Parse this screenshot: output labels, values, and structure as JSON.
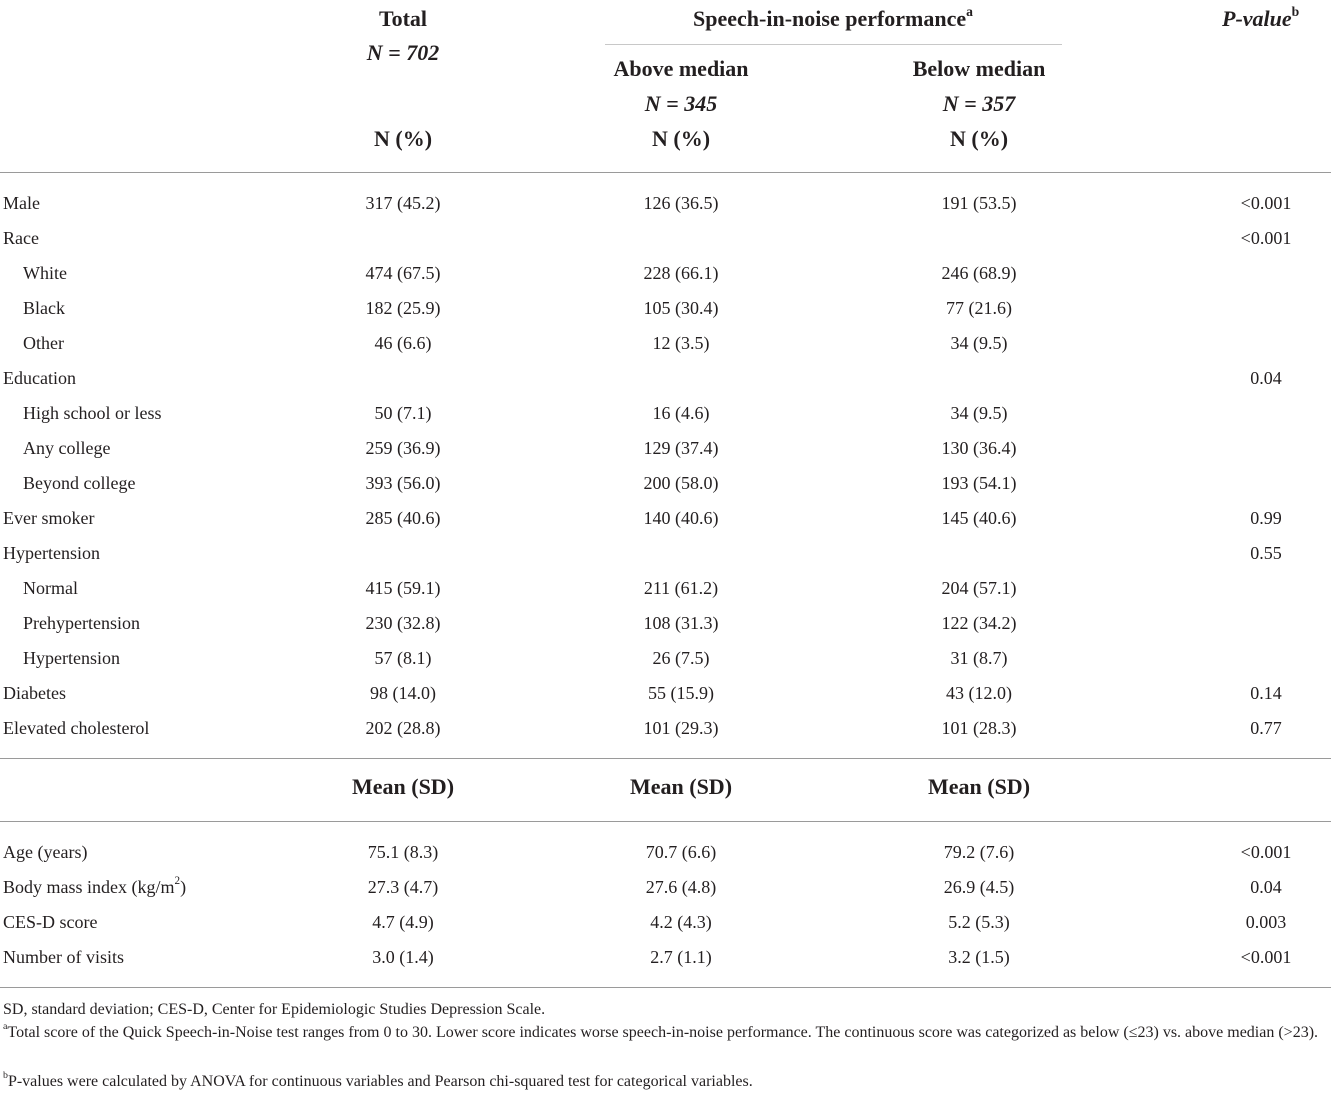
{
  "header": {
    "total_title": "Total",
    "total_n": "N = 702",
    "total_unit": "N (%)",
    "group_title": "Speech-in-noise performance",
    "group_title_sup": "a",
    "above_title": "Above median",
    "above_n": "N = 345",
    "above_unit": "N (%)",
    "below_title": "Below median",
    "below_n": "N = 357",
    "below_unit": "N (%)",
    "pvalue_title": "P-value",
    "pvalue_sup": "b"
  },
  "categorical_rows": [
    {
      "label": "Male",
      "indent": false,
      "total": "317 (45.2)",
      "above": "126 (36.5)",
      "below": "191 (53.5)",
      "p": "<0.001"
    },
    {
      "label": "Race",
      "indent": false,
      "total": "",
      "above": "",
      "below": "",
      "p": "<0.001"
    },
    {
      "label": "White",
      "indent": true,
      "total": "474 (67.5)",
      "above": "228 (66.1)",
      "below": "246 (68.9)",
      "p": ""
    },
    {
      "label": "Black",
      "indent": true,
      "total": "182 (25.9)",
      "above": "105 (30.4)",
      "below": "77 (21.6)",
      "p": ""
    },
    {
      "label": "Other",
      "indent": true,
      "total": "46 (6.6)",
      "above": "12 (3.5)",
      "below": "34 (9.5)",
      "p": ""
    },
    {
      "label": "Education",
      "indent": false,
      "total": "",
      "above": "",
      "below": "",
      "p": "0.04"
    },
    {
      "label": "High school or less",
      "indent": true,
      "total": "50 (7.1)",
      "above": "16 (4.6)",
      "below": "34 (9.5)",
      "p": ""
    },
    {
      "label": "Any college",
      "indent": true,
      "total": "259 (36.9)",
      "above": "129 (37.4)",
      "below": "130 (36.4)",
      "p": ""
    },
    {
      "label": "Beyond college",
      "indent": true,
      "total": "393 (56.0)",
      "above": "200 (58.0)",
      "below": "193 (54.1)",
      "p": ""
    },
    {
      "label": "Ever smoker",
      "indent": false,
      "total": "285 (40.6)",
      "above": "140 (40.6)",
      "below": "145 (40.6)",
      "p": "0.99"
    },
    {
      "label": "Hypertension",
      "indent": false,
      "total": "",
      "above": "",
      "below": "",
      "p": "0.55"
    },
    {
      "label": "Normal",
      "indent": true,
      "total": "415 (59.1)",
      "above": "211 (61.2)",
      "below": "204 (57.1)",
      "p": ""
    },
    {
      "label": "Prehypertension",
      "indent": true,
      "total": "230 (32.8)",
      "above": "108 (31.3)",
      "below": "122 (34.2)",
      "p": ""
    },
    {
      "label": "Hypertension",
      "indent": true,
      "total": "57 (8.1)",
      "above": "26 (7.5)",
      "below": "31 (8.7)",
      "p": ""
    },
    {
      "label": "Diabetes",
      "indent": false,
      "total": "98 (14.0)",
      "above": "55 (15.9)",
      "below": "43 (12.0)",
      "p": "0.14"
    },
    {
      "label": "Elevated cholesterol",
      "indent": false,
      "total": "202 (28.8)",
      "above": "101 (29.3)",
      "below": "101 (28.3)",
      "p": "0.77"
    }
  ],
  "mean_header": {
    "total": "Mean (SD)",
    "above": "Mean (SD)",
    "below": "Mean (SD)"
  },
  "continuous_rows": [
    {
      "label": "Age (years)",
      "label_sup": "",
      "label_tail": "",
      "total": "75.1 (8.3)",
      "above": "70.7 (6.6)",
      "below": "79.2 (7.6)",
      "p": "<0.001"
    },
    {
      "label": "Body mass index (kg/m",
      "label_sup": "2",
      "label_tail": ")",
      "total": "27.3 (4.7)",
      "above": "27.6 (4.8)",
      "below": "26.9 (4.5)",
      "p": "0.04"
    },
    {
      "label": "CES-D score",
      "label_sup": "",
      "label_tail": "",
      "total": "4.7 (4.9)",
      "above": "4.2 (4.3)",
      "below": "5.2 (5.3)",
      "p": "0.003"
    },
    {
      "label": "Number of visits",
      "label_sup": "",
      "label_tail": "",
      "total": "3.0 (1.4)",
      "above": "2.7 (1.1)",
      "below": "3.2 (1.5)",
      "p": "<0.001"
    }
  ],
  "footnotes": {
    "abbrev": "SD, standard deviation; CES-D, Center for Epidemiologic Studies Depression Scale.",
    "a_mark": "a",
    "a_text": "Total score of the Quick Speech-in-Noise test ranges from 0 to 30. Lower score indicates worse speech-in-noise performance. The continuous score was categorized as below (≤23) vs. above median (>23).",
    "b_mark": "b",
    "b_text": "P-values were calculated by ANOVA for continuous variables and Pearson chi-squared test for categorical variables."
  }
}
